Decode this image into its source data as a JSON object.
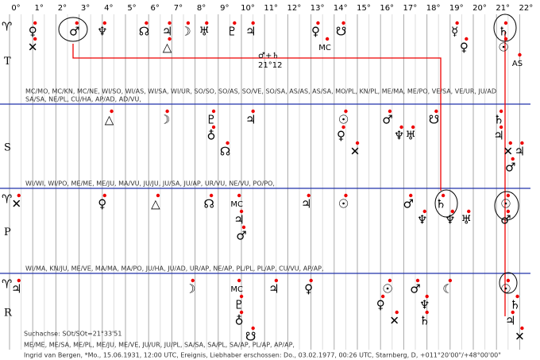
{
  "scale": {
    "degrees": [
      "0°",
      "1°",
      "2°",
      "3°",
      "4°",
      "5°",
      "6°",
      "7°",
      "8°",
      "9°",
      "10°",
      "11°",
      "12°",
      "13°",
      "14°",
      "15°",
      "16°",
      "17°",
      "18°",
      "19°",
      "20°",
      "21°",
      "22°"
    ]
  },
  "annotation": {
    "formula": "♂+♄",
    "value": "21°12"
  },
  "rows": [
    {
      "symbol": "♈",
      "label": "T",
      "glyphs": [
        {
          "g": "♀",
          "deg": 1.0
        },
        {
          "g": "✕",
          "deg": 1.0
        },
        {
          "g": "♂",
          "deg": 2.8
        },
        {
          "g": "♆",
          "deg": 4.0
        },
        {
          "g": "☊",
          "deg": 5.8
        },
        {
          "g": "♃",
          "deg": 6.8
        },
        {
          "g": "△",
          "deg": 6.8
        },
        {
          "g": "☽",
          "deg": 7.6
        },
        {
          "g": "♅",
          "deg": 8.4
        },
        {
          "g": "♇",
          "deg": 9.6
        },
        {
          "g": "♃",
          "deg": 10.4
        },
        {
          "g": "♀",
          "deg": 13.2
        },
        {
          "g": "MC",
          "deg": 13.6
        },
        {
          "g": "☋",
          "deg": 14.3
        },
        {
          "g": "☿",
          "deg": 19.2
        },
        {
          "g": "♀",
          "deg": 19.6
        },
        {
          "g": "♄",
          "deg": 21.3
        },
        {
          "g": "☉",
          "deg": 21.3
        },
        {
          "g": "AS",
          "deg": 21.9
        }
      ],
      "midpoints": [
        "MC/MO, MC/KN, MC/NE, WI/SO, WI/AS, WI/SA, WI/UR, SO/SO, SO/AS, SO/VE, SO/SA, AS/AS, AS/SA, MO/PL, KN/PL, ME/MA, ME/PO, VE/SA, VE/UR, JU/AD",
        "SA/SA, NE/PL, CU/HA, AP/AD, AD/VU,"
      ]
    },
    {
      "symbol": "",
      "label": "S",
      "glyphs": [
        {
          "g": "△",
          "deg": 4.3
        },
        {
          "g": "☽",
          "deg": 6.7
        },
        {
          "g": "♇",
          "deg": 8.7
        },
        {
          "g": "♁",
          "deg": 8.7
        },
        {
          "g": "☊",
          "deg": 9.3
        },
        {
          "g": "♃",
          "deg": 10.4
        },
        {
          "g": "☉",
          "deg": 14.4
        },
        {
          "g": "♀",
          "deg": 14.3
        },
        {
          "g": "✕",
          "deg": 14.9
        },
        {
          "g": "♂",
          "deg": 16.3
        },
        {
          "g": "♆",
          "deg": 16.8
        },
        {
          "g": "♅",
          "deg": 17.3
        },
        {
          "g": "☋",
          "deg": 18.3
        },
        {
          "g": "♄",
          "deg": 21.1
        },
        {
          "g": "♃",
          "deg": 21.1
        },
        {
          "g": "✕",
          "deg": 21.5
        },
        {
          "g": "♂",
          "deg": 21.6
        },
        {
          "g": "♃",
          "deg": 22.0
        }
      ],
      "midpoints": [
        "WI/WI, WI/PO, ME/ME, ME/JU, MA/VU, JU/JU, JU/SA, JU/AP, UR/VU, NE/VU, PO/PO,"
      ]
    },
    {
      "symbol": "♈",
      "label": "P",
      "glyphs": [
        {
          "g": "✕",
          "deg": 0.3
        },
        {
          "g": "♀",
          "deg": 4.0
        },
        {
          "g": "△",
          "deg": 6.3
        },
        {
          "g": "☊",
          "deg": 8.6
        },
        {
          "g": "MC",
          "deg": 9.8
        },
        {
          "g": "♃",
          "deg": 9.9
        },
        {
          "g": "♂",
          "deg": 10.0
        },
        {
          "g": "♃",
          "deg": 12.8
        },
        {
          "g": "☉",
          "deg": 14.4
        },
        {
          "g": "♂",
          "deg": 17.2
        },
        {
          "g": "♆",
          "deg": 17.8
        },
        {
          "g": "♄",
          "deg": 18.6
        },
        {
          "g": "♆",
          "deg": 19.0
        },
        {
          "g": "♅",
          "deg": 19.7
        },
        {
          "g": "☉",
          "deg": 21.4
        },
        {
          "g": "♂",
          "deg": 21.4
        }
      ],
      "midpoints": [
        "WI/MA, KN/JU, ME/VE, MA/MA, MA/PO, JU/HA, JU/AD, UR/AP, NE/AP, PL/PL, PL/AP, CU/VU, AP/AP,"
      ]
    },
    {
      "symbol": "♈",
      "label": "R",
      "glyphs": [
        {
          "g": "♃",
          "deg": 0.3
        },
        {
          "g": "☽",
          "deg": 7.8
        },
        {
          "g": "MC",
          "deg": 9.8
        },
        {
          "g": "♇",
          "deg": 9.9
        },
        {
          "g": "♁",
          "deg": 9.9
        },
        {
          "g": "☋",
          "deg": 10.4
        },
        {
          "g": "♃",
          "deg": 11.4
        },
        {
          "g": "♀",
          "deg": 12.9
        },
        {
          "g": "☉",
          "deg": 16.3
        },
        {
          "g": "♀",
          "deg": 16.0
        },
        {
          "g": "✕",
          "deg": 16.6
        },
        {
          "g": "♂",
          "deg": 17.5
        },
        {
          "g": "♆",
          "deg": 17.9
        },
        {
          "g": "♄",
          "deg": 17.9
        },
        {
          "g": "☾",
          "deg": 18.9
        },
        {
          "g": "☉",
          "deg": 21.4
        },
        {
          "g": "♄",
          "deg": 21.8
        },
        {
          "g": "♃",
          "deg": 21.6
        },
        {
          "g": "✕",
          "deg": 22.0
        }
      ],
      "midpoints": []
    }
  ],
  "footer": {
    "axis": "Suchachse: SOt/SOt=21°33'51",
    "list": "ME/ME, ME/SA, ME/PL, ME/JU, ME/VE, JU/UR, JU/PL, SA/SA, SA/PL, SA/AP, PL/AP, AP/AP,",
    "info": "Ingrid van Bergen, *Mo., 15.06.1931, 12:00 UTC, Ereignis, Liebhaber erschossen: Do., 03.02.1977, 00:26 UTC, Starnberg, D, +011°20'00\"/+48°00'00\""
  }
}
